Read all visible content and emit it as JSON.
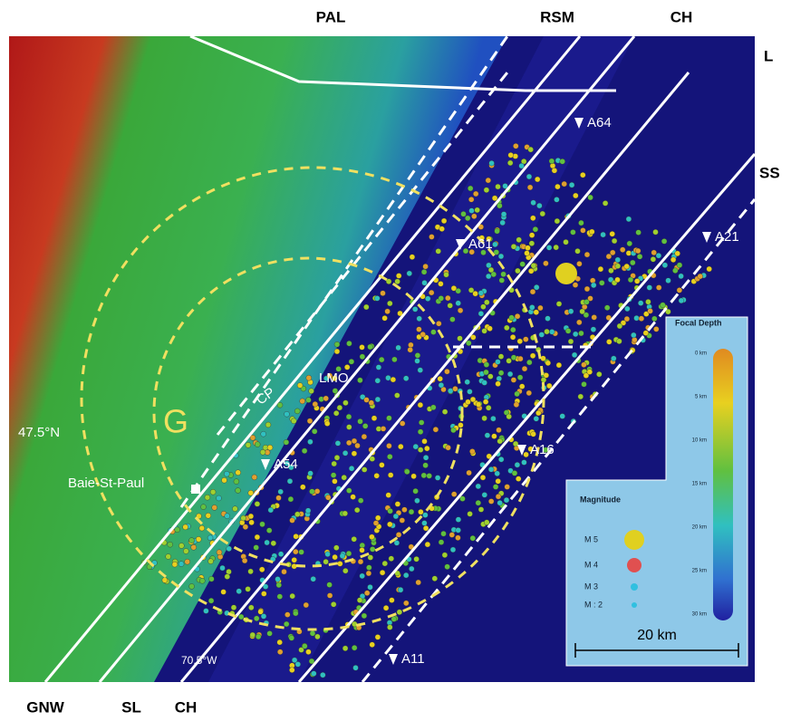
{
  "map": {
    "top_labels": [
      "PAL",
      "RSM",
      "CH"
    ],
    "right_labels": [
      "L",
      "SS"
    ],
    "bottom_labels": [
      "GNW",
      "SL",
      "CH"
    ],
    "stations": [
      "A64",
      "A61",
      "A21",
      "A54",
      "A16",
      "A11"
    ],
    "places": {
      "cp": "CP",
      "lmo": "LMO",
      "town": "Baie-St-Paul",
      "crater": "G",
      "lat": "47.5°N",
      "lon": "70.5°W"
    },
    "legend": {
      "depth_title": "Focal Depth",
      "depth_ticks": [
        "0 km",
        "5 km",
        "10 km",
        "15 km",
        "20 km",
        "25 km",
        "30 km"
      ],
      "magnitude_title": "Magnitude",
      "magnitudes": [
        "M 5",
        "M 4",
        "M 3",
        "M : 2"
      ],
      "scale": "20 km"
    }
  }
}
